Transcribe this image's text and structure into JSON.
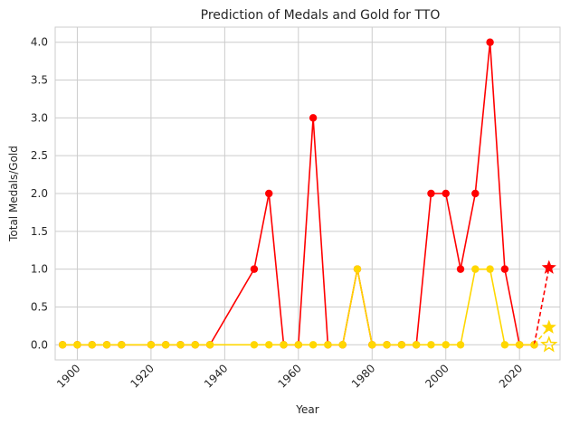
{
  "chart_data": {
    "type": "line",
    "title": "Prediction of Medals and Gold for TTO",
    "xlabel": "Year",
    "ylabel": "Total Medals/Gold",
    "xlim": [
      1894,
      2031
    ],
    "ylim": [
      -0.2,
      4.2
    ],
    "xticks": [
      1900,
      1920,
      1940,
      1960,
      1980,
      2000,
      2020
    ],
    "yticks": [
      0.0,
      0.5,
      1.0,
      1.5,
      2.0,
      2.5,
      3.0,
      3.5,
      4.0
    ],
    "ytick_labels": [
      "0.0",
      "0.5",
      "1.0",
      "1.5",
      "2.0",
      "2.5",
      "3.0",
      "3.5",
      "4.0"
    ],
    "grid": true,
    "legend": "none",
    "x": [
      1896,
      1900,
      1904,
      1908,
      1912,
      1920,
      1924,
      1928,
      1932,
      1936,
      1948,
      1952,
      1956,
      1960,
      1964,
      1968,
      1972,
      1976,
      1980,
      1984,
      1988,
      1992,
      1996,
      2000,
      2004,
      2008,
      2012,
      2016,
      2020,
      2024
    ],
    "series": [
      {
        "key": "total",
        "color": "#ff0000",
        "values": [
          0,
          0,
          0,
          0,
          0,
          0,
          0,
          0,
          0,
          0,
          1,
          2,
          0,
          0,
          3,
          0,
          0,
          1,
          0,
          0,
          0,
          0,
          2,
          2,
          1,
          2,
          4,
          1,
          0,
          0
        ]
      },
      {
        "key": "gold",
        "color": "#ffd700",
        "values": [
          0,
          0,
          0,
          0,
          0,
          0,
          0,
          0,
          0,
          0,
          0,
          0,
          0,
          0,
          0,
          0,
          0,
          1,
          0,
          0,
          0,
          0,
          0,
          0,
          0,
          1,
          1,
          0,
          0,
          0
        ]
      }
    ],
    "predictions": [
      {
        "key": "total",
        "x": 2028,
        "y": 1.02,
        "color": "#ff0000",
        "marker": "star",
        "dashed_from": [
          2024,
          0
        ]
      },
      {
        "key": "gold",
        "x": 2028,
        "y": 0.23,
        "color": "#ffd700",
        "marker": "star",
        "dashed_from": [
          2024,
          0
        ]
      },
      {
        "key": "gold-low",
        "x": 2028,
        "y": 0.0,
        "color": "#ffd700",
        "marker": "star-outline"
      }
    ]
  }
}
